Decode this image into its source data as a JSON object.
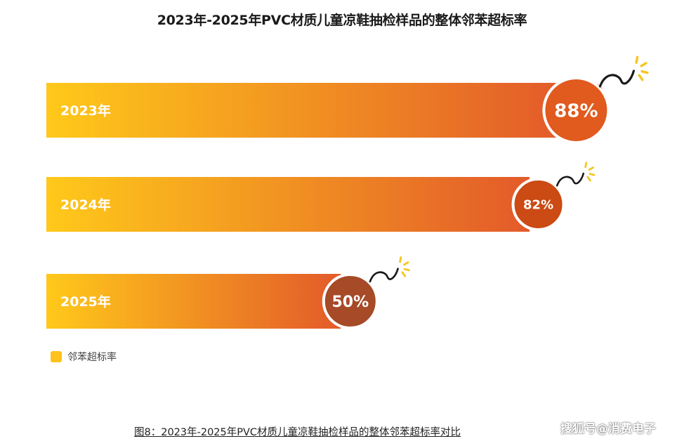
{
  "chart_data": {
    "type": "bar",
    "orientation": "horizontal",
    "title": "2023年-2025年PVC材质儿童凉鞋抽检样品的整体邻苯超标率",
    "categories": [
      "2023年",
      "2024年",
      "2025年"
    ],
    "values": [
      88,
      82,
      50
    ],
    "value_labels": [
      "88%",
      "82%",
      "50%"
    ],
    "series": [
      {
        "name": "邻苯超标率",
        "values": [
          88,
          82,
          50
        ]
      }
    ],
    "legend_position": "bottom-left",
    "grid": false,
    "colors": {
      "bar_start": "#FFC91A",
      "bar_end": "#E35A2A",
      "legend": "#FFC21A",
      "bomb_2023": "#E15A1E",
      "bomb_2024": "#CC4A14",
      "bomb_2025": "#A64A28",
      "spark": "#F3C620"
    }
  },
  "caption": "图8：2023年-2025年PVC材质儿童凉鞋抽检样品的整体邻苯超标率对比",
  "watermark": "搜狐号@消费电子",
  "icons": [
    "bomb-icon"
  ]
}
